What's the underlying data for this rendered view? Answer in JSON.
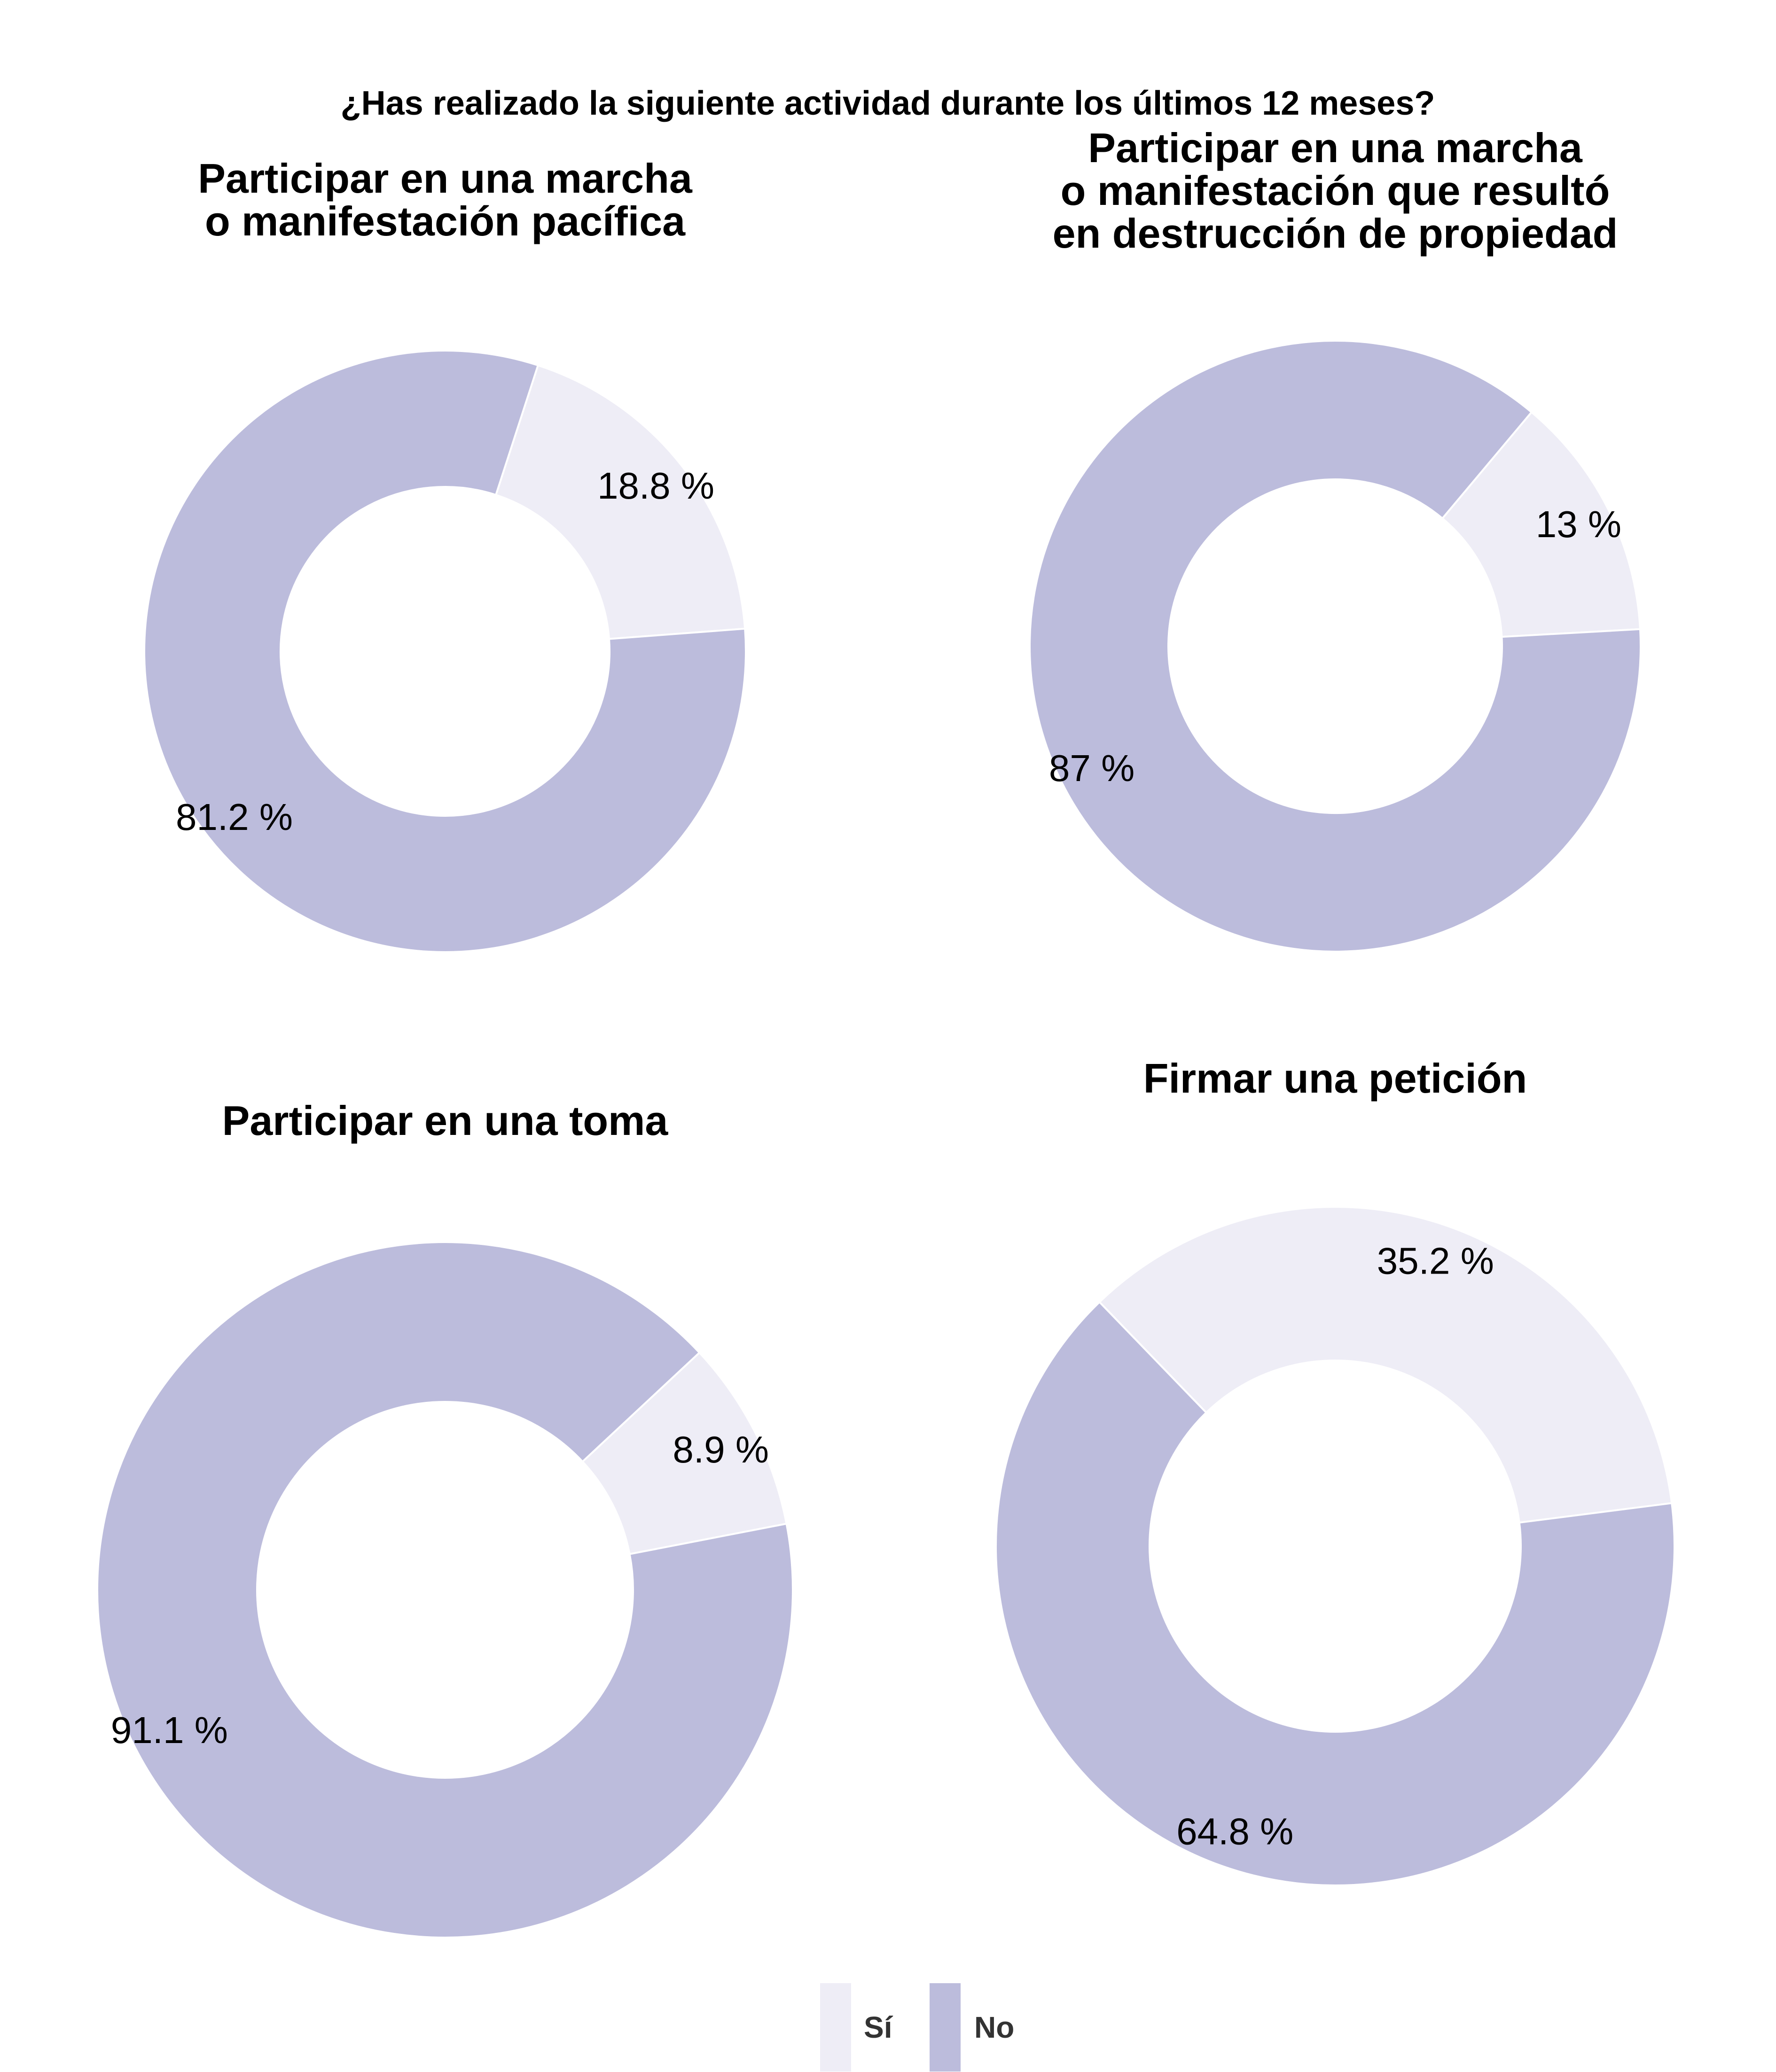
{
  "chart_data": {
    "type": "pie",
    "variant": "donut",
    "title": "¿Has realizado la siguiente actividad durante los últimos 12 meses?",
    "legend": {
      "placement": "bottom",
      "entries": [
        {
          "label": "Sí",
          "color": "#eeedf6"
        },
        {
          "label": "No",
          "color": "#bcbcdc"
        }
      ]
    },
    "categories": [
      "Sí",
      "No"
    ],
    "colors": {
      "Sí": "#eeedf6",
      "No": "#bcbcdc"
    },
    "panels": [
      {
        "title_lines": [
          "Participar en una marcha",
          "o manifestación pacífica"
        ],
        "values": [
          18.8,
          81.2
        ],
        "labels": [
          "18.8 %",
          "81.2 %"
        ]
      },
      {
        "title_lines": [
          "Participar en una marcha",
          "o manifestación que resultó",
          "en destrucción de propiedad"
        ],
        "values": [
          13,
          87
        ],
        "labels": [
          "13 %",
          "87 %"
        ]
      },
      {
        "title_lines": [
          "Participar en una toma"
        ],
        "values": [
          8.9,
          91.1
        ],
        "labels": [
          "8.9 %",
          "91.1 %"
        ]
      },
      {
        "title_lines": [
          "Firmar una petición"
        ],
        "values": [
          35.2,
          64.8
        ],
        "labels": [
          "35.2 %",
          "64.8 %"
        ]
      }
    ]
  }
}
